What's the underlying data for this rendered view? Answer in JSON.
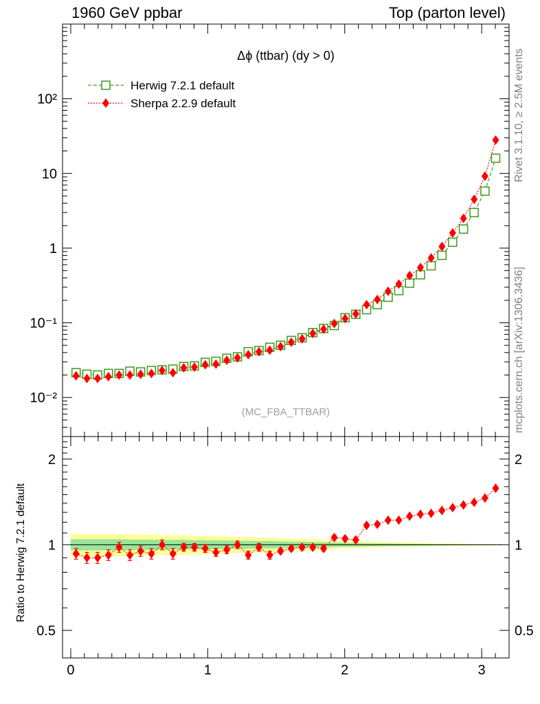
{
  "header": {
    "left": "1960 GeV ppbar",
    "right": "Top (parton level)"
  },
  "side_labels": {
    "rivet": "Rivet 3.1.10, ≥ 2.5M events",
    "mcplots": "mcplots.cern.ch [arXiv:1306.3436]"
  },
  "colors": {
    "herwig": "#3a9a1a",
    "sherpa": "#ff0000",
    "band_yellow": "#ffff99",
    "band_green": "#99e699"
  },
  "chart_data": [
    {
      "type": "line",
      "title": "Δϕ (ttbar) (dy > 0)",
      "watermark": "(MC_FBA_TTBAR)",
      "yscale": "log",
      "xlim": [
        -0.06,
        3.2
      ],
      "ylim": [
        0.003,
        1000
      ],
      "yticks": [
        {
          "v": 0.01,
          "label": "10⁻²"
        },
        {
          "v": 0.1,
          "label": "10⁻¹"
        },
        {
          "v": 1,
          "label": "1"
        },
        {
          "v": 10,
          "label": "10"
        },
        {
          "v": 100,
          "label": "10²"
        }
      ],
      "legend_position": "top-left",
      "x": [
        0.039,
        0.118,
        0.196,
        0.275,
        0.353,
        0.432,
        0.51,
        0.589,
        0.667,
        0.746,
        0.825,
        0.903,
        0.982,
        1.06,
        1.139,
        1.217,
        1.296,
        1.374,
        1.453,
        1.532,
        1.61,
        1.689,
        1.767,
        1.846,
        1.924,
        2.003,
        2.081,
        2.16,
        2.238,
        2.317,
        2.395,
        2.474,
        2.553,
        2.631,
        2.71,
        2.788,
        2.867,
        2.945,
        3.024,
        3.102
      ],
      "series": [
        {
          "name": "Herwig 7.2.1 default",
          "marker": "open-square",
          "linestyle": "dashed",
          "values": [
            0.0215,
            0.0205,
            0.02,
            0.021,
            0.021,
            0.0225,
            0.022,
            0.023,
            0.0235,
            0.024,
            0.026,
            0.0265,
            0.0295,
            0.0305,
            0.0335,
            0.035,
            0.041,
            0.0425,
            0.047,
            0.05,
            0.058,
            0.063,
            0.074,
            0.084,
            0.092,
            0.117,
            0.13,
            0.15,
            0.175,
            0.22,
            0.27,
            0.34,
            0.44,
            0.58,
            0.8,
            1.2,
            1.8,
            3.0,
            5.8,
            16.0
          ]
        },
        {
          "name": "Sherpa 2.2.9 default",
          "marker": "filled-diamond",
          "linestyle": "dotted",
          "values": [
            0.0195,
            0.018,
            0.018,
            0.019,
            0.02,
            0.02,
            0.0205,
            0.021,
            0.023,
            0.0215,
            0.025,
            0.0255,
            0.0275,
            0.028,
            0.0315,
            0.034,
            0.0375,
            0.041,
            0.043,
            0.048,
            0.055,
            0.061,
            0.072,
            0.082,
            0.098,
            0.114,
            0.132,
            0.175,
            0.205,
            0.265,
            0.33,
            0.43,
            0.55,
            0.74,
            1.05,
            1.6,
            2.5,
            4.5,
            9.2,
            28.0
          ]
        }
      ]
    },
    {
      "type": "line",
      "ylabel": "Ratio to Herwig 7.2.1 default",
      "yscale": "log",
      "xlim": [
        -0.06,
        3.2
      ],
      "ylim": [
        0.4,
        2.4
      ],
      "yticks": [
        {
          "v": 0.5,
          "label": "0.5"
        },
        {
          "v": 1,
          "label": "1"
        },
        {
          "v": 2,
          "label": "2"
        }
      ],
      "xticks": [
        {
          "v": 0,
          "label": "0"
        },
        {
          "v": 1,
          "label": "1"
        },
        {
          "v": 2,
          "label": "2"
        },
        {
          "v": 3,
          "label": "3"
        }
      ],
      "x": [
        0.039,
        0.118,
        0.196,
        0.275,
        0.353,
        0.432,
        0.51,
        0.589,
        0.667,
        0.746,
        0.825,
        0.903,
        0.982,
        1.06,
        1.139,
        1.217,
        1.296,
        1.374,
        1.453,
        1.532,
        1.61,
        1.689,
        1.767,
        1.846,
        1.924,
        2.003,
        2.081,
        2.16,
        2.238,
        2.317,
        2.395,
        2.474,
        2.553,
        2.631,
        2.71,
        2.788,
        2.867,
        2.945,
        3.024,
        3.102
      ],
      "series": [
        {
          "name": "Sherpa 2.2.9 default",
          "values": [
            0.93,
            0.9,
            0.9,
            0.92,
            0.98,
            0.92,
            0.95,
            0.93,
            1.0,
            0.93,
            0.98,
            0.98,
            0.97,
            0.94,
            0.96,
            1.0,
            0.92,
            0.98,
            0.92,
            0.95,
            0.97,
            0.98,
            0.98,
            0.97,
            1.06,
            1.05,
            1.04,
            1.17,
            1.18,
            1.22,
            1.22,
            1.26,
            1.28,
            1.29,
            1.32,
            1.35,
            1.38,
            1.41,
            1.46,
            1.58
          ],
          "errors": [
            0.04,
            0.04,
            0.04,
            0.04,
            0.04,
            0.04,
            0.04,
            0.04,
            0.04,
            0.04,
            0.03,
            0.03,
            0.03,
            0.03,
            0.03,
            0.03,
            0.03,
            0.03,
            0.03,
            0.02,
            0.02,
            0.02,
            0.02,
            0.02,
            0.02,
            0.02,
            0.02,
            0.02,
            0.02,
            0.01,
            0.01,
            0.01,
            0.01,
            0.01,
            0.01,
            0.01,
            0.01,
            0.01,
            0.01,
            0.01
          ]
        }
      ],
      "reference_band": {
        "yellow_halfwidth": [
          0.09,
          0.09,
          0.09,
          0.09,
          0.09,
          0.09,
          0.085,
          0.085,
          0.08,
          0.08,
          0.08,
          0.075,
          0.075,
          0.07,
          0.07,
          0.065,
          0.065,
          0.06,
          0.06,
          0.055,
          0.05,
          0.05,
          0.045,
          0.04,
          0.035,
          0.03,
          0.028,
          0.025,
          0.022,
          0.02,
          0.018,
          0.016,
          0.014,
          0.012,
          0.01,
          0.009,
          0.008,
          0.007,
          0.006,
          0.004
        ],
        "green_halfwidth": [
          0.045,
          0.045,
          0.045,
          0.045,
          0.045,
          0.043,
          0.042,
          0.042,
          0.04,
          0.04,
          0.04,
          0.038,
          0.037,
          0.035,
          0.035,
          0.033,
          0.032,
          0.03,
          0.03,
          0.028,
          0.025,
          0.025,
          0.022,
          0.02,
          0.018,
          0.015,
          0.014,
          0.012,
          0.011,
          0.01,
          0.009,
          0.008,
          0.007,
          0.006,
          0.005,
          0.0045,
          0.004,
          0.0035,
          0.003,
          0.002
        ]
      }
    }
  ]
}
